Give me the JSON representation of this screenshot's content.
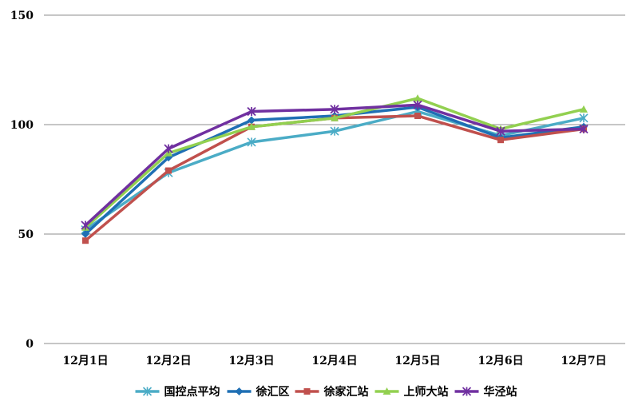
{
  "chart_data": {
    "type": "line",
    "title": "",
    "xlabel": "",
    "ylabel": "",
    "categories": [
      "12月1日",
      "12月2日",
      "12月3日",
      "12月4日",
      "12月5日",
      "12月6日",
      "12月7日"
    ],
    "ylim": [
      0,
      150
    ],
    "yticks": [
      "0",
      "50",
      "100",
      "150"
    ],
    "grid": true,
    "legend_position": "bottom",
    "series": [
      {
        "name": "国控点平均",
        "color": "#4bacc6",
        "marker": "asterisk",
        "values": [
          52,
          78,
          92,
          97,
          106,
          95,
          103
        ]
      },
      {
        "name": "徐汇区",
        "color": "#1f6fb4",
        "marker": "diamond",
        "values": [
          50,
          85,
          102,
          104,
          108,
          94,
          99
        ]
      },
      {
        "name": "徐家汇站",
        "color": "#c0504d",
        "marker": "square",
        "values": [
          47,
          79,
          99,
          103,
          104,
          93,
          98
        ]
      },
      {
        "name": "上师大站",
        "color": "#92d050",
        "marker": "triangle",
        "values": [
          53,
          87,
          99,
          103,
          112,
          98,
          107
        ]
      },
      {
        "name": "华泾站",
        "color": "#7030a0",
        "marker": "x",
        "values": [
          54,
          89,
          106,
          107,
          109,
          97,
          98
        ]
      }
    ]
  }
}
